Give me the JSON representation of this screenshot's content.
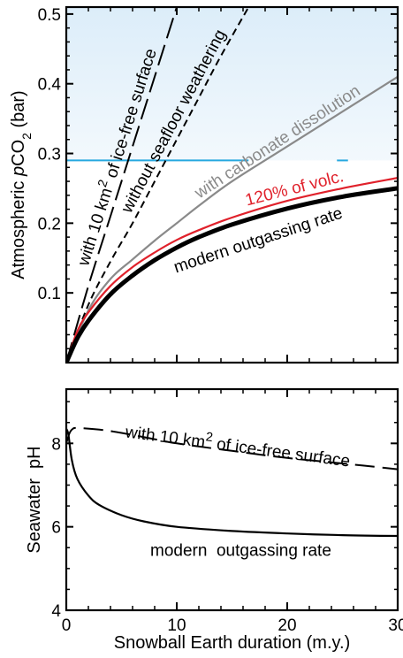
{
  "chart_data": [
    {
      "type": "line",
      "xlim": [
        0,
        30
      ],
      "ylim": [
        0,
        0.51
      ],
      "xlabel": "",
      "ylabel": "Atmospheric pCO2 (bar)",
      "ylabel_parts": [
        "Atmospheric ",
        "p",
        "CO",
        "2",
        " (bar)"
      ],
      "y_ticks": [
        0.1,
        0.2,
        0.3,
        0.4,
        0.5
      ],
      "y_tick_labels": [
        "0.1",
        "0.2",
        "0.3",
        "0.4",
        "0.5"
      ],
      "x_ticks": [
        0,
        10,
        20,
        30
      ],
      "shaded_region": {
        "y_from": 0.29,
        "y_to": 0.51,
        "color": "#dcedf9"
      },
      "threshold_line": {
        "y": 0.29,
        "x_to": 16.5,
        "color": "#27a8df"
      },
      "series": [
        {
          "label_parts": [
            "with 10 km",
            "2",
            " of ice-free surface"
          ],
          "style": "long-dash",
          "color": "#000000",
          "x": [
            0,
            2,
            4,
            6,
            8,
            10
          ],
          "y": [
            0,
            0.11,
            0.21,
            0.31,
            0.41,
            0.51
          ]
        },
        {
          "label_parts": [
            "without seafloor weathering"
          ],
          "style": "short-dash",
          "color": "#000000",
          "x": [
            0,
            2,
            4,
            6,
            8,
            10,
            12,
            14,
            16.5
          ],
          "y": [
            0,
            0.083,
            0.145,
            0.2,
            0.26,
            0.32,
            0.38,
            0.44,
            0.51
          ]
        },
        {
          "label_parts": [
            "with carbonate dissolution"
          ],
          "style": "solid",
          "color": "#8a8a8a",
          "x": [
            0,
            2,
            4,
            6,
            8,
            10,
            12,
            15,
            20,
            25,
            30
          ],
          "y": [
            0,
            0.075,
            0.12,
            0.148,
            0.175,
            0.2,
            0.225,
            0.26,
            0.31,
            0.36,
            0.41
          ]
        },
        {
          "label_parts": [
            "120% of volc."
          ],
          "style": "solid",
          "color": "#e0212b",
          "x": [
            0,
            1,
            2,
            4,
            6,
            8,
            10,
            12,
            15,
            20,
            25,
            30
          ],
          "y": [
            0,
            0.045,
            0.072,
            0.11,
            0.137,
            0.158,
            0.176,
            0.19,
            0.208,
            0.232,
            0.25,
            0.265
          ]
        },
        {
          "label_parts": [
            "modern  outgassing rate"
          ],
          "style": "solid-thick",
          "color": "#000000",
          "x": [
            0,
            1,
            2,
            4,
            6,
            8,
            10,
            12,
            15,
            20,
            25,
            30
          ],
          "y": [
            0,
            0.035,
            0.06,
            0.098,
            0.125,
            0.147,
            0.165,
            0.18,
            0.198,
            0.221,
            0.238,
            0.25
          ]
        }
      ]
    },
    {
      "type": "line",
      "xlim": [
        0,
        30
      ],
      "ylim": [
        4,
        9.3
      ],
      "xlabel": "Snowball Earth duration (m.y.)",
      "ylabel": "Seawater  pH",
      "y_ticks": [
        4,
        6,
        8
      ],
      "y_tick_labels": [
        "4",
        "6",
        "8"
      ],
      "x_ticks": [
        0,
        10,
        20,
        30
      ],
      "x_tick_labels": [
        "0",
        "10",
        "20",
        "30"
      ],
      "series": [
        {
          "label_parts": [
            "with 10 km",
            "2",
            " of ice-free surface"
          ],
          "style": "long-dash",
          "color": "#000000",
          "x": [
            0,
            0.3,
            0.6,
            1,
            3,
            5,
            8,
            10,
            15,
            20,
            25,
            30
          ],
          "y": [
            8.0,
            8.25,
            8.35,
            8.37,
            8.33,
            8.25,
            8.1,
            8.0,
            7.82,
            7.65,
            7.52,
            7.38
          ]
        },
        {
          "label_parts": [
            "modern  outgassing rate"
          ],
          "style": "solid",
          "color": "#000000",
          "x": [
            0,
            0.2,
            0.5,
            1,
            2,
            3,
            5,
            7,
            10,
            15,
            20,
            25,
            30
          ],
          "y": [
            8.35,
            8.2,
            7.6,
            7.15,
            6.75,
            6.52,
            6.28,
            6.13,
            6.0,
            5.9,
            5.84,
            5.8,
            5.78
          ]
        }
      ]
    }
  ]
}
